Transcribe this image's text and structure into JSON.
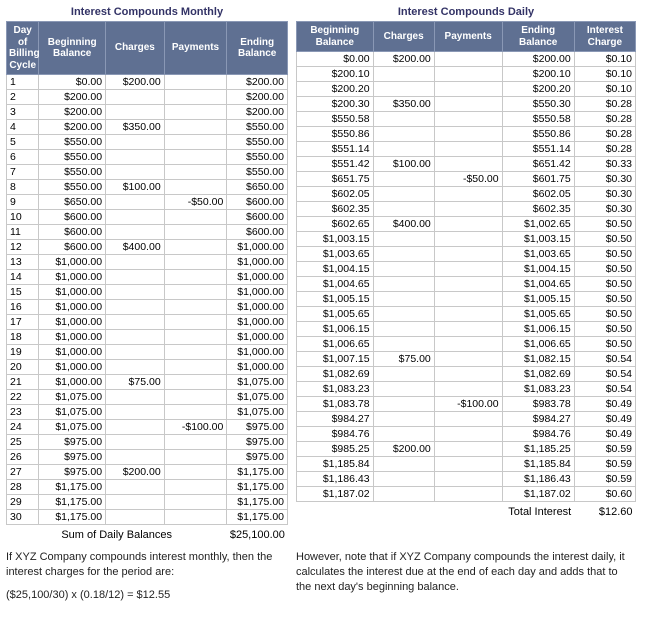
{
  "left": {
    "title": "Interest Compounds Monthly",
    "headers": [
      "Day of Billing Cycle",
      "Beginning Balance",
      "Charges",
      "Payments",
      "Ending Balance"
    ],
    "rows": [
      {
        "day": "1",
        "bb": "$0.00",
        "ch": "$200.00",
        "pm": "",
        "eb": "$200.00"
      },
      {
        "day": "2",
        "bb": "$200.00",
        "ch": "",
        "pm": "",
        "eb": "$200.00"
      },
      {
        "day": "3",
        "bb": "$200.00",
        "ch": "",
        "pm": "",
        "eb": "$200.00"
      },
      {
        "day": "4",
        "bb": "$200.00",
        "ch": "$350.00",
        "pm": "",
        "eb": "$550.00"
      },
      {
        "day": "5",
        "bb": "$550.00",
        "ch": "",
        "pm": "",
        "eb": "$550.00"
      },
      {
        "day": "6",
        "bb": "$550.00",
        "ch": "",
        "pm": "",
        "eb": "$550.00"
      },
      {
        "day": "7",
        "bb": "$550.00",
        "ch": "",
        "pm": "",
        "eb": "$550.00"
      },
      {
        "day": "8",
        "bb": "$550.00",
        "ch": "$100.00",
        "pm": "",
        "eb": "$650.00"
      },
      {
        "day": "9",
        "bb": "$650.00",
        "ch": "",
        "pm": "-$50.00",
        "eb": "$600.00"
      },
      {
        "day": "10",
        "bb": "$600.00",
        "ch": "",
        "pm": "",
        "eb": "$600.00"
      },
      {
        "day": "11",
        "bb": "$600.00",
        "ch": "",
        "pm": "",
        "eb": "$600.00"
      },
      {
        "day": "12",
        "bb": "$600.00",
        "ch": "$400.00",
        "pm": "",
        "eb": "$1,000.00"
      },
      {
        "day": "13",
        "bb": "$1,000.00",
        "ch": "",
        "pm": "",
        "eb": "$1,000.00"
      },
      {
        "day": "14",
        "bb": "$1,000.00",
        "ch": "",
        "pm": "",
        "eb": "$1,000.00"
      },
      {
        "day": "15",
        "bb": "$1,000.00",
        "ch": "",
        "pm": "",
        "eb": "$1,000.00"
      },
      {
        "day": "16",
        "bb": "$1,000.00",
        "ch": "",
        "pm": "",
        "eb": "$1,000.00"
      },
      {
        "day": "17",
        "bb": "$1,000.00",
        "ch": "",
        "pm": "",
        "eb": "$1,000.00"
      },
      {
        "day": "18",
        "bb": "$1,000.00",
        "ch": "",
        "pm": "",
        "eb": "$1,000.00"
      },
      {
        "day": "19",
        "bb": "$1,000.00",
        "ch": "",
        "pm": "",
        "eb": "$1,000.00"
      },
      {
        "day": "20",
        "bb": "$1,000.00",
        "ch": "",
        "pm": "",
        "eb": "$1,000.00"
      },
      {
        "day": "21",
        "bb": "$1,000.00",
        "ch": "$75.00",
        "pm": "",
        "eb": "$1,075.00"
      },
      {
        "day": "22",
        "bb": "$1,075.00",
        "ch": "",
        "pm": "",
        "eb": "$1,075.00"
      },
      {
        "day": "23",
        "bb": "$1,075.00",
        "ch": "",
        "pm": "",
        "eb": "$1,075.00"
      },
      {
        "day": "24",
        "bb": "$1,075.00",
        "ch": "",
        "pm": "-$100.00",
        "eb": "$975.00"
      },
      {
        "day": "25",
        "bb": "$975.00",
        "ch": "",
        "pm": "",
        "eb": "$975.00"
      },
      {
        "day": "26",
        "bb": "$975.00",
        "ch": "",
        "pm": "",
        "eb": "$975.00"
      },
      {
        "day": "27",
        "bb": "$975.00",
        "ch": "$200.00",
        "pm": "",
        "eb": "$1,175.00"
      },
      {
        "day": "28",
        "bb": "$1,175.00",
        "ch": "",
        "pm": "",
        "eb": "$1,175.00"
      },
      {
        "day": "29",
        "bb": "$1,175.00",
        "ch": "",
        "pm": "",
        "eb": "$1,175.00"
      },
      {
        "day": "30",
        "bb": "$1,175.00",
        "ch": "",
        "pm": "",
        "eb": "$1,175.00"
      }
    ],
    "sum_label": "Sum of Daily Balances",
    "sum_value": "$25,100.00",
    "note_a": "If XYZ Company compounds interest monthly, then the interest charges for the period are:",
    "note_b": "($25,100/30) x (0.18/12) = $12.55"
  },
  "right": {
    "title": "Interest Compounds Daily",
    "headers": [
      "Beginning Balance",
      "Charges",
      "Payments",
      "Ending Balance",
      "Interest Charge"
    ],
    "rows": [
      {
        "bb": "$0.00",
        "ch": "$200.00",
        "pm": "",
        "eb": "$200.00",
        "ic": "$0.10"
      },
      {
        "bb": "$200.10",
        "ch": "",
        "pm": "",
        "eb": "$200.10",
        "ic": "$0.10"
      },
      {
        "bb": "$200.20",
        "ch": "",
        "pm": "",
        "eb": "$200.20",
        "ic": "$0.10"
      },
      {
        "bb": "$200.30",
        "ch": "$350.00",
        "pm": "",
        "eb": "$550.30",
        "ic": "$0.28"
      },
      {
        "bb": "$550.58",
        "ch": "",
        "pm": "",
        "eb": "$550.58",
        "ic": "$0.28"
      },
      {
        "bb": "$550.86",
        "ch": "",
        "pm": "",
        "eb": "$550.86",
        "ic": "$0.28"
      },
      {
        "bb": "$551.14",
        "ch": "",
        "pm": "",
        "eb": "$551.14",
        "ic": "$0.28"
      },
      {
        "bb": "$551.42",
        "ch": "$100.00",
        "pm": "",
        "eb": "$651.42",
        "ic": "$0.33"
      },
      {
        "bb": "$651.75",
        "ch": "",
        "pm": "-$50.00",
        "eb": "$601.75",
        "ic": "$0.30"
      },
      {
        "bb": "$602.05",
        "ch": "",
        "pm": "",
        "eb": "$602.05",
        "ic": "$0.30"
      },
      {
        "bb": "$602.35",
        "ch": "",
        "pm": "",
        "eb": "$602.35",
        "ic": "$0.30"
      },
      {
        "bb": "$602.65",
        "ch": "$400.00",
        "pm": "",
        "eb": "$1,002.65",
        "ic": "$0.50"
      },
      {
        "bb": "$1,003.15",
        "ch": "",
        "pm": "",
        "eb": "$1,003.15",
        "ic": "$0.50"
      },
      {
        "bb": "$1,003.65",
        "ch": "",
        "pm": "",
        "eb": "$1,003.65",
        "ic": "$0.50"
      },
      {
        "bb": "$1,004.15",
        "ch": "",
        "pm": "",
        "eb": "$1,004.15",
        "ic": "$0.50"
      },
      {
        "bb": "$1,004.65",
        "ch": "",
        "pm": "",
        "eb": "$1,004.65",
        "ic": "$0.50"
      },
      {
        "bb": "$1,005.15",
        "ch": "",
        "pm": "",
        "eb": "$1,005.15",
        "ic": "$0.50"
      },
      {
        "bb": "$1,005.65",
        "ch": "",
        "pm": "",
        "eb": "$1,005.65",
        "ic": "$0.50"
      },
      {
        "bb": "$1,006.15",
        "ch": "",
        "pm": "",
        "eb": "$1,006.15",
        "ic": "$0.50"
      },
      {
        "bb": "$1,006.65",
        "ch": "",
        "pm": "",
        "eb": "$1,006.65",
        "ic": "$0.50"
      },
      {
        "bb": "$1,007.15",
        "ch": "$75.00",
        "pm": "",
        "eb": "$1,082.15",
        "ic": "$0.54"
      },
      {
        "bb": "$1,082.69",
        "ch": "",
        "pm": "",
        "eb": "$1,082.69",
        "ic": "$0.54"
      },
      {
        "bb": "$1,083.23",
        "ch": "",
        "pm": "",
        "eb": "$1,083.23",
        "ic": "$0.54"
      },
      {
        "bb": "$1,083.78",
        "ch": "",
        "pm": "-$100.00",
        "eb": "$983.78",
        "ic": "$0.49"
      },
      {
        "bb": "$984.27",
        "ch": "",
        "pm": "",
        "eb": "$984.27",
        "ic": "$0.49"
      },
      {
        "bb": "$984.76",
        "ch": "",
        "pm": "",
        "eb": "$984.76",
        "ic": "$0.49"
      },
      {
        "bb": "$985.25",
        "ch": "$200.00",
        "pm": "",
        "eb": "$1,185.25",
        "ic": "$0.59"
      },
      {
        "bb": "$1,185.84",
        "ch": "",
        "pm": "",
        "eb": "$1,185.84",
        "ic": "$0.59"
      },
      {
        "bb": "$1,186.43",
        "ch": "",
        "pm": "",
        "eb": "$1,186.43",
        "ic": "$0.59"
      },
      {
        "bb": "$1,187.02",
        "ch": "",
        "pm": "",
        "eb": "$1,187.02",
        "ic": "$0.60"
      }
    ],
    "sum_label": "Total Interest",
    "sum_value": "$12.60",
    "note_a": "However, note that if XYZ Company compounds the interest daily, it calculates the interest due at the end of each day and adds that to the next day's beginning balance."
  },
  "colors": {
    "header_bg": "#5f7092",
    "header_fg": "#ffffff",
    "grid": "#c8c8c8",
    "title_fg": "#333366"
  }
}
